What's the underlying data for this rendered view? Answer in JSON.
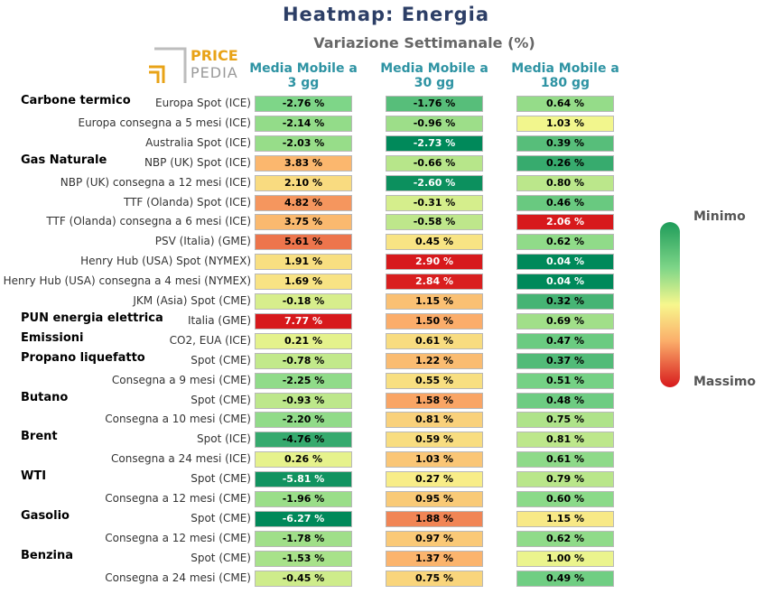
{
  "title": "Heatmap: Energia",
  "subtitle": "Variazione Settimanale (%)",
  "logo": {
    "line1": "PRICE",
    "line2": "PEDIA",
    "color1": "#e8a317",
    "color2": "#9a9a9a"
  },
  "legend": {
    "min_label": "Minimo",
    "max_label": "Massimo"
  },
  "chart_data": {
    "type": "heatmap",
    "title": "Heatmap: Energia",
    "subtitle": "Variazione Settimanale (%)",
    "columns": [
      {
        "line1": "Media Mobile a",
        "line2": "3 gg"
      },
      {
        "line1": "Media Mobile a",
        "line2": "30 gg"
      },
      {
        "line1": "Media Mobile a",
        "line2": "180 gg"
      }
    ],
    "color_scale": {
      "min_color": "#00895a",
      "mid_color": "#f7f78d",
      "max_color": "#d7191c"
    },
    "rows": [
      {
        "category": "Carbone termico",
        "label": "Europa Spot (ICE)",
        "values": [
          -2.76,
          -1.76,
          0.64
        ]
      },
      {
        "category": "",
        "label": "Europa consegna a 5 mesi (ICE)",
        "values": [
          -2.14,
          -0.96,
          1.03
        ]
      },
      {
        "category": "",
        "label": "Australia Spot (ICE)",
        "values": [
          -2.03,
          -2.73,
          0.39
        ]
      },
      {
        "category": "Gas Naturale",
        "label": "NBP (UK) Spot (ICE)",
        "values": [
          3.83,
          -0.66,
          0.26
        ]
      },
      {
        "category": "",
        "label": "NBP (UK) consegna a 12 mesi (ICE)",
        "values": [
          2.1,
          -2.6,
          0.8
        ]
      },
      {
        "category": "",
        "label": "TTF (Olanda) Spot (ICE)",
        "values": [
          4.82,
          -0.31,
          0.46
        ]
      },
      {
        "category": "",
        "label": "TTF (Olanda) consegna a 6 mesi (ICE)",
        "values": [
          3.75,
          -0.58,
          2.06
        ]
      },
      {
        "category": "",
        "label": "PSV (Italia) (GME)",
        "values": [
          5.61,
          0.45,
          0.62
        ]
      },
      {
        "category": "",
        "label": "Henry Hub (USA) Spot (NYMEX)",
        "values": [
          1.91,
          2.9,
          0.04
        ]
      },
      {
        "category": "",
        "label": "Henry Hub (USA) consegna a 4 mesi (NYMEX)",
        "values": [
          1.69,
          2.84,
          0.04
        ]
      },
      {
        "category": "",
        "label": "JKM (Asia) Spot (CME)",
        "values": [
          -0.18,
          1.15,
          0.32
        ]
      },
      {
        "category": "PUN energia elettrica",
        "label": "Italia (GME)",
        "values": [
          7.77,
          1.5,
          0.69
        ]
      },
      {
        "category": "Emissioni",
        "label": "CO2, EUA (ICE)",
        "values": [
          0.21,
          0.61,
          0.47
        ]
      },
      {
        "category": "Propano liquefatto",
        "label": "Spot (CME)",
        "values": [
          -0.78,
          1.22,
          0.37
        ]
      },
      {
        "category": "",
        "label": "Consegna a 9 mesi (CME)",
        "values": [
          -2.25,
          0.55,
          0.51
        ]
      },
      {
        "category": "Butano",
        "label": "Spot (CME)",
        "values": [
          -0.93,
          1.58,
          0.48
        ]
      },
      {
        "category": "",
        "label": "Consegna a 10 mesi (CME)",
        "values": [
          -2.2,
          0.81,
          0.75
        ]
      },
      {
        "category": "Brent",
        "label": "Spot (ICE)",
        "values": [
          -4.76,
          0.59,
          0.81
        ]
      },
      {
        "category": "",
        "label": "Consegna a 24 mesi (ICE)",
        "values": [
          0.26,
          1.03,
          0.61
        ]
      },
      {
        "category": "WTI",
        "label": "Spot (CME)",
        "values": [
          -5.81,
          0.27,
          0.79
        ]
      },
      {
        "category": "",
        "label": "Consegna a 12 mesi (CME)",
        "values": [
          -1.96,
          0.95,
          0.6
        ]
      },
      {
        "category": "Gasolio",
        "label": "Spot (CME)",
        "values": [
          -6.27,
          1.88,
          1.15
        ]
      },
      {
        "category": "",
        "label": "Consegna a 12 mesi (CME)",
        "values": [
          -1.78,
          0.97,
          0.62
        ]
      },
      {
        "category": "Benzina",
        "label": "Spot (CME)",
        "values": [
          -1.53,
          1.37,
          1.0
        ]
      },
      {
        "category": "",
        "label": "Consegna a 24 mesi (CME)",
        "values": [
          -0.45,
          0.75,
          0.49
        ]
      }
    ]
  }
}
